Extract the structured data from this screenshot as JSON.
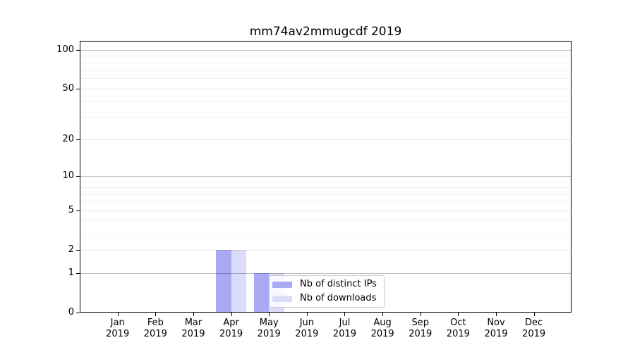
{
  "title": "mm74av2mmugcdf 2019",
  "chart_data": {
    "type": "bar",
    "title": "mm74av2mmugcdf 2019",
    "categories": [
      "Jan 2019",
      "Feb 2019",
      "Mar 2019",
      "Apr 2019",
      "May 2019",
      "Jun 2019",
      "Jul 2019",
      "Aug 2019",
      "Sep 2019",
      "Oct 2019",
      "Nov 2019",
      "Dec 2019"
    ],
    "series": [
      {
        "name": "Nb of distinct IPs",
        "color": "#a9a9f4",
        "values": [
          0,
          0,
          0,
          2,
          1,
          0,
          0,
          0,
          0,
          0,
          0,
          0
        ]
      },
      {
        "name": "Nb of downloads",
        "color": "#dbdbfa",
        "values": [
          0,
          0,
          0,
          2,
          1,
          0,
          0,
          0,
          0,
          0,
          0,
          0
        ]
      }
    ],
    "yscale": "log1p",
    "ylim": [
      0,
      115
    ],
    "yticks": [
      0,
      1,
      2,
      5,
      10,
      20,
      50,
      100
    ],
    "yticks_emphasized": [
      1,
      10,
      100
    ],
    "yticks_minor": [
      3,
      4,
      6,
      7,
      8,
      9,
      30,
      40,
      60,
      70,
      80,
      90
    ],
    "grid": "both",
    "legend": {
      "position": "inside-bottom",
      "entries": [
        "Nb of distinct IPs",
        "Nb of downloads"
      ]
    }
  }
}
